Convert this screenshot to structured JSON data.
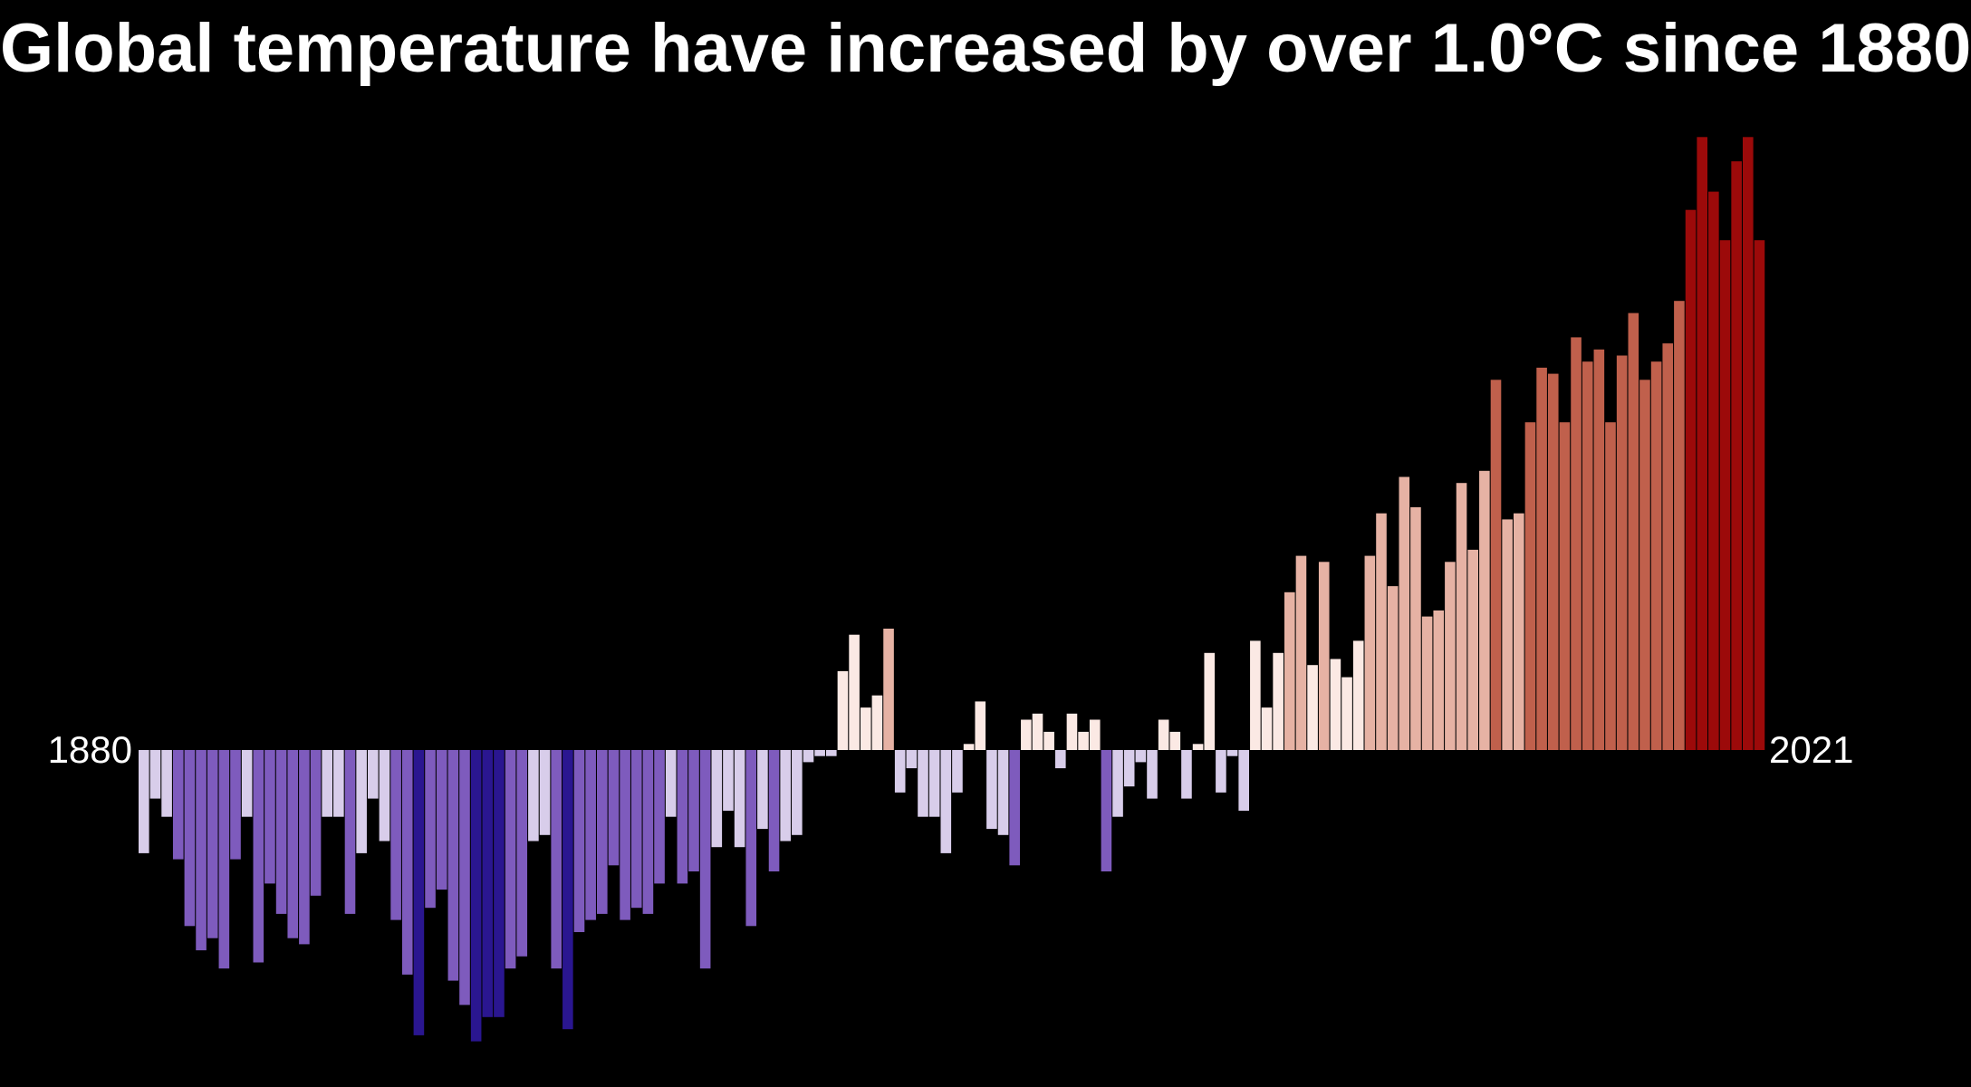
{
  "title": "Global temperature have increased by over 1.0°C since 1880",
  "colors": {
    "background": "#000000",
    "cold_extreme": "#2a1690",
    "cold_strong": "#7e5bbd",
    "cold_mild": "#d8cdea",
    "neutral_warm": "#fbe9e4",
    "warm_mild": "#e6b2a4",
    "warm_strong": "#c0604c",
    "warm_extreme": "#9c0a0a"
  },
  "chart_data": {
    "type": "bar",
    "x_start": 1880,
    "x_end": 2021,
    "tick_labels": [
      "1880",
      "2021"
    ],
    "ylabel": "",
    "ylim": [
      -0.5,
      1.0
    ],
    "grid": false,
    "legend": "none",
    "values": [
      -0.17,
      -0.08,
      -0.11,
      -0.18,
      -0.29,
      -0.33,
      -0.31,
      -0.36,
      -0.18,
      -0.11,
      -0.35,
      -0.22,
      -0.27,
      -0.31,
      -0.32,
      -0.24,
      -0.11,
      -0.11,
      -0.27,
      -0.17,
      -0.08,
      -0.15,
      -0.28,
      -0.37,
      -0.47,
      -0.26,
      -0.23,
      -0.38,
      -0.42,
      -0.48,
      -0.44,
      -0.44,
      -0.36,
      -0.34,
      -0.15,
      -0.14,
      -0.36,
      -0.46,
      -0.3,
      -0.28,
      -0.27,
      -0.19,
      -0.28,
      -0.26,
      -0.27,
      -0.22,
      -0.11,
      -0.22,
      -0.2,
      -0.36,
      -0.16,
      -0.1,
      -0.16,
      -0.29,
      -0.13,
      -0.2,
      -0.15,
      -0.14,
      -0.02,
      -0.01,
      -0.01,
      0.13,
      0.19,
      0.07,
      0.09,
      0.2,
      -0.07,
      -0.03,
      -0.11,
      -0.11,
      -0.17,
      -0.07,
      0.01,
      0.08,
      -0.13,
      -0.14,
      -0.19,
      0.05,
      0.06,
      0.03,
      -0.03,
      0.06,
      0.03,
      0.05,
      -0.2,
      -0.11,
      -0.06,
      -0.02,
      -0.08,
      0.05,
      0.03,
      -0.08,
      0.01,
      0.16,
      -0.07,
      -0.01,
      -0.1,
      0.18,
      0.07,
      0.16,
      0.26,
      0.32,
      0.14,
      0.31,
      0.15,
      0.12,
      0.18,
      0.32,
      0.39,
      0.27,
      0.45,
      0.4,
      0.22,
      0.23,
      0.31,
      0.44,
      0.33,
      0.46,
      0.61,
      0.38,
      0.39,
      0.54,
      0.63,
      0.62,
      0.54,
      0.68,
      0.64,
      0.66,
      0.54,
      0.65,
      0.72,
      0.61,
      0.64,
      0.67,
      0.74,
      0.89,
      1.01,
      0.92,
      0.84,
      0.97,
      1.01,
      0.84
    ]
  }
}
